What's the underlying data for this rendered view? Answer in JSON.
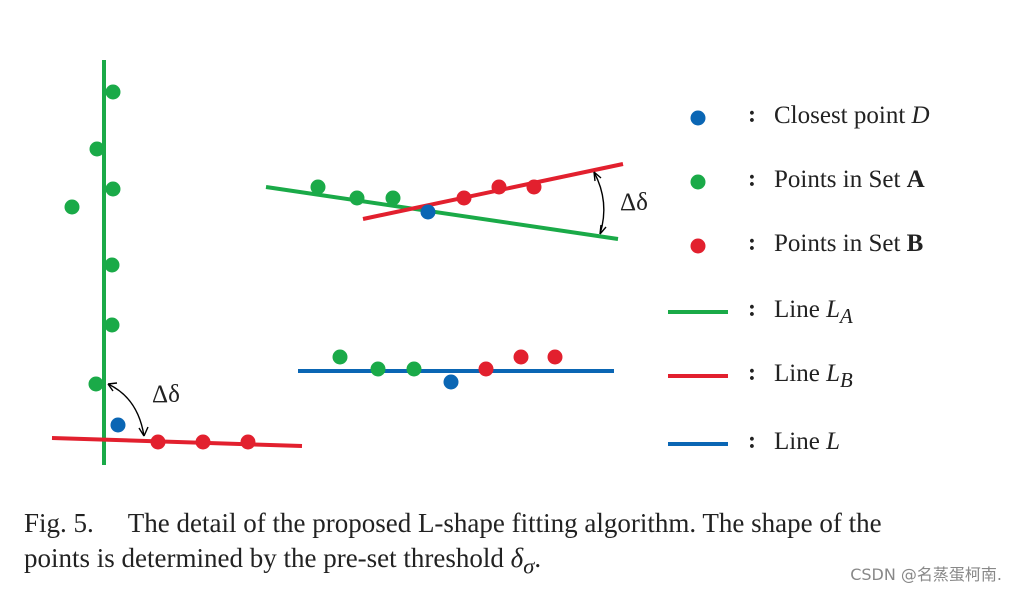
{
  "colors": {
    "green": "#1aaa48",
    "red": "#e2202e",
    "blue": "#0a66b4"
  },
  "annotations": {
    "angle_left": "Δδ",
    "angle_right": "Δδ"
  },
  "legend": [
    {
      "marker": "blue-dot",
      "label": "Closest point ",
      "label_italic": "D",
      "label_bold": "",
      "sub": ""
    },
    {
      "marker": "green-dot",
      "label": "Points in Set ",
      "label_italic": "",
      "label_bold": "A",
      "sub": ""
    },
    {
      "marker": "red-dot",
      "label": "Points in Set ",
      "label_italic": "",
      "label_bold": "B",
      "sub": ""
    },
    {
      "marker": "green-line",
      "label": "Line ",
      "label_italic": "L",
      "label_bold": "",
      "sub": "A"
    },
    {
      "marker": "red-line",
      "label": "Line ",
      "label_italic": "L",
      "label_bold": "",
      "sub": "B"
    },
    {
      "marker": "blue-line",
      "label": "Line ",
      "label_italic": "L",
      "label_bold": "",
      "sub": ""
    }
  ],
  "legend_colon": ":",
  "caption": {
    "fig_number": "Fig. 5.",
    "text_line1": "The detail of the proposed L-shape fitting algorithm. The shape of the",
    "text_line2": "points is determined by the pre-set threshold ",
    "symbol": "δ",
    "symbol_sub": "σ",
    "end": "."
  },
  "watermark": "CSDN @名蒸蛋柯南."
}
